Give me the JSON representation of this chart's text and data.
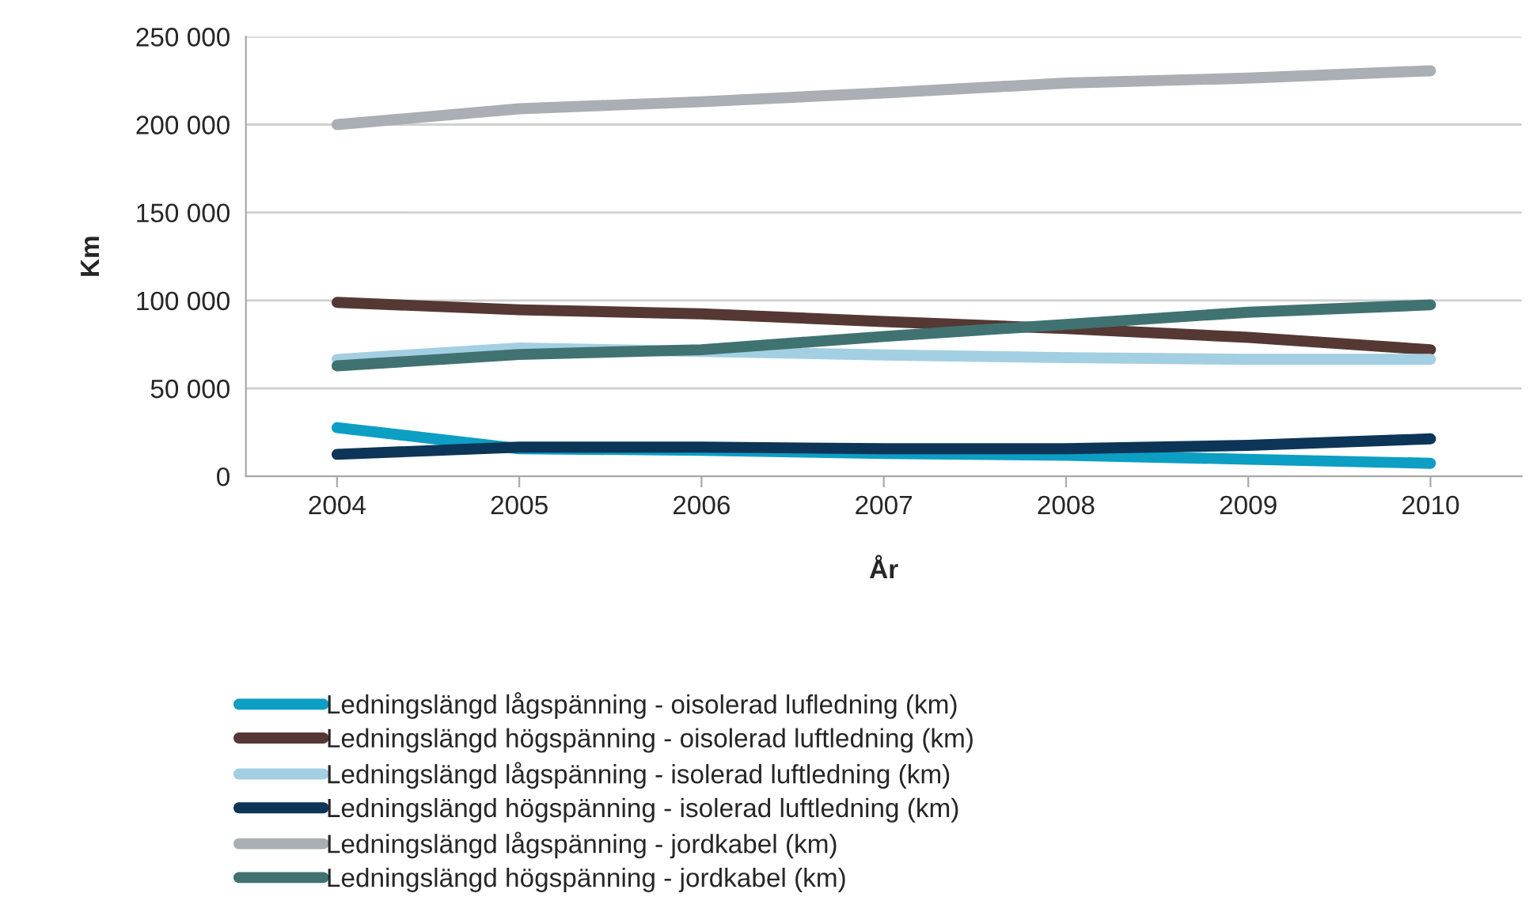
{
  "chart_data": {
    "type": "line",
    "xlabel": "År",
    "ylabel": "Km",
    "categories": [
      "2004",
      "2005",
      "2006",
      "2007",
      "2008",
      "2009",
      "2010"
    ],
    "ylim": [
      0,
      250000
    ],
    "yticks": [
      {
        "value": 0,
        "label": "0"
      },
      {
        "value": 50000,
        "label": "50 000"
      },
      {
        "value": 100000,
        "label": "100 000"
      },
      {
        "value": 150000,
        "label": "150 000"
      },
      {
        "value": 200000,
        "label": "200 000"
      },
      {
        "value": 250000,
        "label": "250 000"
      }
    ],
    "grid": "y",
    "legend": "bottom",
    "marker": "none",
    "line_style": "solid",
    "series": [
      {
        "name": "Ledningslängd lågspänning - oisolerad lufledning (km)",
        "color": "#0d9ec4",
        "values": [
          27700,
          15700,
          14800,
          13000,
          12000,
          9700,
          7400
        ]
      },
      {
        "name": "Ledningslängd högspänning - oisolerad luftledning (km)",
        "color": "#553833",
        "values": [
          98900,
          94700,
          92400,
          88000,
          84000,
          79000,
          72000
        ]
      },
      {
        "name": "Ledningslängd lågspänning - isolerad luftledning (km)",
        "color": "#a3cfe2",
        "values": [
          66500,
          73000,
          71000,
          69000,
          67500,
          66500,
          66500
        ]
      },
      {
        "name": "Ledningslängd högspänning - isolerad luftledning (km)",
        "color": "#0c3558",
        "values": [
          12500,
          16600,
          16600,
          15700,
          15700,
          17600,
          21300
        ]
      },
      {
        "name": "Ledningslängd lågspänning - jordkabel (km)",
        "color": "#a9afb4",
        "values": [
          200000,
          209000,
          213000,
          218000,
          223600,
          226400,
          230600
        ]
      },
      {
        "name": "Ledningslängd högspänning - jordkabel (km)",
        "color": "#417272",
        "values": [
          62800,
          69300,
          72000,
          79500,
          86400,
          93300,
          97500
        ]
      }
    ]
  }
}
